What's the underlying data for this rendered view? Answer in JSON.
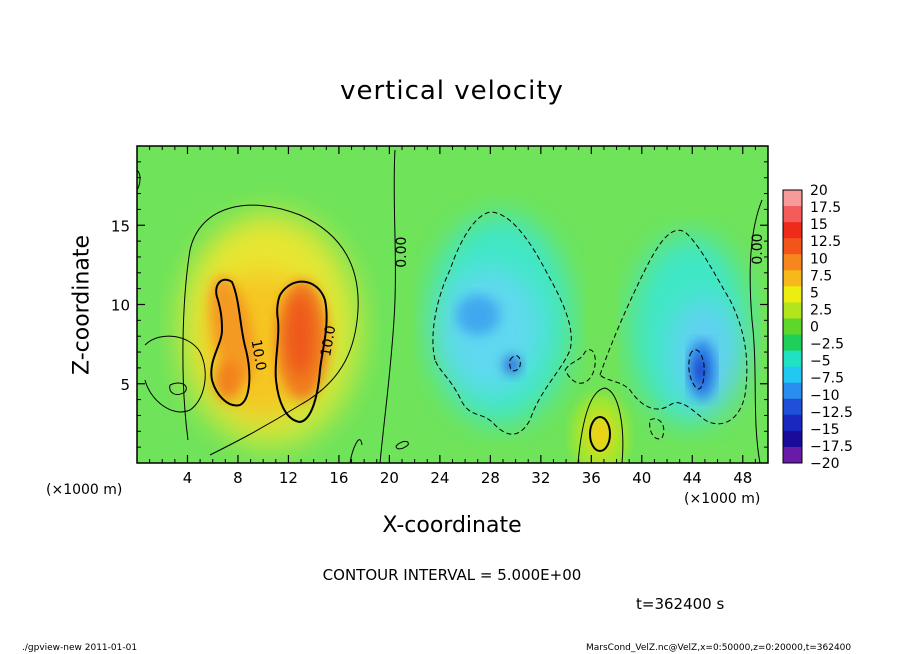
{
  "chart_data": {
    "type": "heatmap",
    "title": "vertical velocity",
    "xlabel": "X-coordinate",
    "ylabel": "Z-coordinate",
    "x_unit_label": "(×1000 m)",
    "xlim": [
      0,
      50
    ],
    "ylim": [
      0,
      20
    ],
    "x_ticks": [
      "4",
      "8",
      "12",
      "16",
      "20",
      "24",
      "28",
      "32",
      "36",
      "40",
      "44",
      "48"
    ],
    "x_tick_values": [
      4,
      8,
      12,
      16,
      20,
      24,
      28,
      32,
      36,
      40,
      44,
      48
    ],
    "y_ticks": [
      "5",
      "10",
      "15"
    ],
    "y_tick_values": [
      5,
      10,
      15
    ],
    "contour_labels": [
      {
        "text": "0.00",
        "x": 21.0,
        "z": 13.3,
        "angle": -90
      },
      {
        "text": "0.00",
        "x": 49.2,
        "z": 13.5,
        "angle": -90
      },
      {
        "text": "10.0",
        "x": 9.6,
        "z": 6.8,
        "angle": 80
      },
      {
        "text": "10.0",
        "x": 15.2,
        "z": 7.7,
        "angle": -80
      }
    ],
    "colorbar": {
      "labels": [
        "20",
        "17.5",
        "15",
        "12.5",
        "10",
        "7.5",
        "5",
        "2.5",
        "0",
        "−2.5",
        "−5",
        "−7.5",
        "−10",
        "−12.5",
        "−15",
        "−17.5",
        "−20"
      ],
      "colors": [
        "#f79a9a",
        "#f45c5c",
        "#ee2a1a",
        "#f2541a",
        "#f7861e",
        "#f6b81a",
        "#eded10",
        "#b2e51c",
        "#5ed62a",
        "#1ecf5a",
        "#1ee2c0",
        "#22c8f2",
        "#2a8ef0",
        "#2050d8",
        "#1a28c0",
        "#1a0c9a",
        "#6a1aa8"
      ]
    },
    "features": [
      {
        "kind": "positive_core",
        "x": 7.5,
        "z": 8.0,
        "peak": 12.5
      },
      {
        "kind": "positive_core",
        "x": 12.5,
        "z": 7.5,
        "peak": 15.0
      },
      {
        "kind": "negative_core",
        "x": 28.5,
        "z": 8.5,
        "peak": -10
      },
      {
        "kind": "negative_core",
        "x": 44.5,
        "z": 6.0,
        "peak": -12.5
      },
      {
        "kind": "positive_core",
        "x": 36.5,
        "z": 1.8,
        "peak": 7.5
      }
    ]
  },
  "annotations": {
    "contour_interval": "CONTOUR INTERVAL = 5.000E+00",
    "time": "t=362400 s"
  },
  "footer": {
    "left": "./gpview-new   2011-01-01",
    "right": "MarsCond_VelZ.nc@VelZ,x=0:50000,z=0:20000,t=362400"
  }
}
